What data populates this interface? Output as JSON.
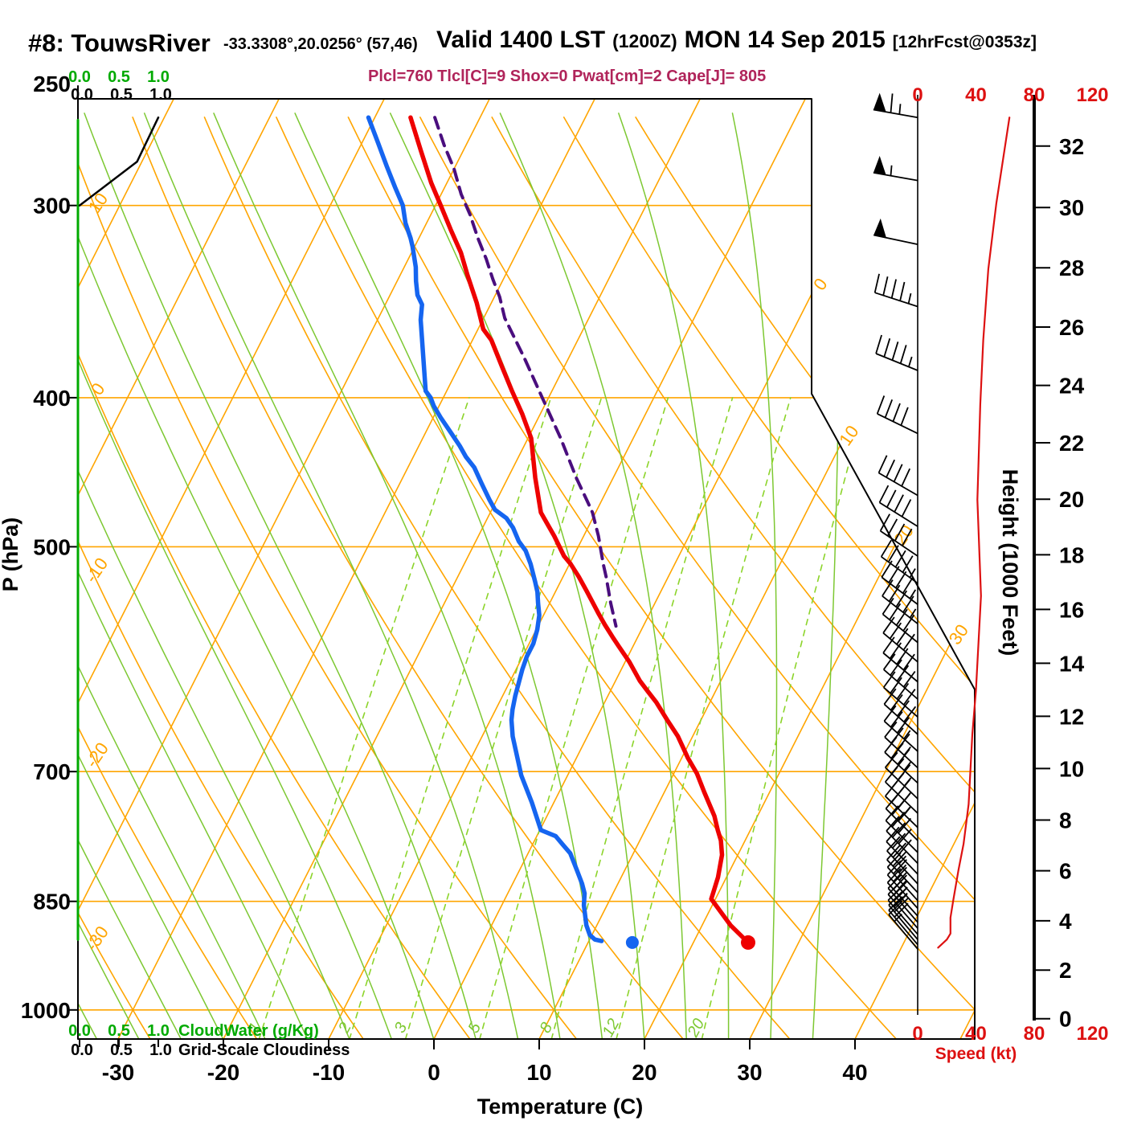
{
  "header": {
    "station": "#8: TouwsRiver",
    "coords": "-33.3308°,20.0256° (57,46)",
    "valid_main": "Valid 1400 LST",
    "valid_zulu": "(1200Z)",
    "valid_date": "MON 14 Sep 2015",
    "valid_fcst": "[12hrFcst@0353z]",
    "subtitle": "Plcl=760 Tlcl[C]=9 Shox=0 Pwat[cm]=2 Cape[J]= 805"
  },
  "colors": {
    "orange": "#FFA500",
    "moist_green": "#7DC832",
    "mix_green": "#8CD42A",
    "bright_green": "#00AA00",
    "temp_red": "#EE0000",
    "dew_blue": "#1565F0",
    "parcel_purple": "#4A0E7E",
    "subtitle_magenta": "#B0245A",
    "speed_red": "#DD1111",
    "black": "#000000"
  },
  "axes": {
    "pressure": {
      "label": "P (hPa)",
      "ticks": [
        250,
        300,
        400,
        500,
        700,
        850,
        1000
      ]
    },
    "temperature": {
      "label": "Temperature (C)",
      "ticks": [
        -30,
        -20,
        -10,
        0,
        10,
        20,
        30,
        40
      ]
    },
    "height": {
      "label": "Height (1000 Feet)",
      "ticks": [
        0,
        2,
        4,
        6,
        8,
        10,
        12,
        14,
        16,
        18,
        20,
        22,
        24,
        26,
        28,
        30,
        32
      ]
    },
    "speed": {
      "label": "Speed (kt)",
      "ticks": [
        0,
        40,
        80,
        120
      ]
    },
    "cloudwater": {
      "label": "CloudWater (g/Kg)",
      "ticks": [
        "0.0",
        "0.5",
        "1.0"
      ]
    },
    "cloudiness": {
      "label": "Grid-Scale Cloudiness",
      "ticks": [
        "0.0",
        "0.5",
        "1.0"
      ]
    }
  },
  "grid_labels": {
    "dry_adiabats": [
      10,
      0,
      -10,
      -20,
      -30
    ],
    "isotherms": [
      0,
      10,
      20,
      30
    ],
    "mixing_ratio": [
      1,
      2,
      3,
      5,
      8,
      12,
      20
    ]
  },
  "chart_data": {
    "type": "skewt-log-p sounding",
    "title": "#8: TouwsRiver Valid 1400 LST (1200Z) MON 14 Sep 2015",
    "pressure_range_hpa": [
      256,
      1045
    ],
    "temperature_axis_c": [
      -30,
      40
    ],
    "series_units": "[pressure_hPa, temperature_C]",
    "temperature": [
      [
        263,
        -46.6
      ],
      [
        276,
        -44.1
      ],
      [
        290,
        -41.5
      ],
      [
        300,
        -39.5
      ],
      [
        311,
        -37.4
      ],
      [
        322,
        -35.3
      ],
      [
        333,
        -33.6
      ],
      [
        347,
        -31.4
      ],
      [
        361,
        -29.5
      ],
      [
        367,
        -28.2
      ],
      [
        382,
        -25.9
      ],
      [
        396,
        -23.8
      ],
      [
        410,
        -21.7
      ],
      [
        425,
        -19.7
      ],
      [
        451,
        -17.4
      ],
      [
        475,
        -15.2
      ],
      [
        482,
        -14.2
      ],
      [
        492,
        -12.8
      ],
      [
        507,
        -10.9
      ],
      [
        513,
        -9.9
      ],
      [
        523,
        -8.5
      ],
      [
        534,
        -7.1
      ],
      [
        553,
        -4.8
      ],
      [
        562,
        -3.7
      ],
      [
        573,
        -2.3
      ],
      [
        580,
        -1.4
      ],
      [
        594,
        0.4
      ],
      [
        611,
        2.3
      ],
      [
        621,
        3.6
      ],
      [
        631,
        4.9
      ],
      [
        648,
        6.8
      ],
      [
        664,
        8.6
      ],
      [
        686,
        10.6
      ],
      [
        702,
        12.2
      ],
      [
        722,
        13.8
      ],
      [
        748,
        15.9
      ],
      [
        764,
        16.9
      ],
      [
        776,
        17.7
      ],
      [
        793,
        18.5
      ],
      [
        820,
        19.2
      ],
      [
        840,
        19.5
      ],
      [
        847,
        19.6
      ],
      [
        860,
        20.8
      ],
      [
        881,
        22.7
      ],
      [
        904,
        25.2
      ]
    ],
    "dewpoint": [
      [
        263,
        -50.6
      ],
      [
        273,
        -48.5
      ],
      [
        283,
        -46.5
      ],
      [
        292,
        -44.7
      ],
      [
        300,
        -43.1
      ],
      [
        308,
        -42.0
      ],
      [
        315,
        -40.8
      ],
      [
        319,
        -40.2
      ],
      [
        329,
        -38.9
      ],
      [
        336,
        -38.2
      ],
      [
        343,
        -37.4
      ],
      [
        348,
        -36.5
      ],
      [
        356,
        -35.9
      ],
      [
        396,
        -32.0
      ],
      [
        400,
        -31.2
      ],
      [
        405,
        -30.5
      ],
      [
        412,
        -29.3
      ],
      [
        422,
        -27.5
      ],
      [
        430,
        -26.1
      ],
      [
        437,
        -25.0
      ],
      [
        444,
        -23.7
      ],
      [
        455,
        -22.2
      ],
      [
        466,
        -20.7
      ],
      [
        473,
        -19.7
      ],
      [
        479,
        -18.2
      ],
      [
        486,
        -17.1
      ],
      [
        496,
        -15.9
      ],
      [
        503,
        -14.8
      ],
      [
        513,
        -13.7
      ],
      [
        527,
        -12.4
      ],
      [
        535,
        -11.7
      ],
      [
        544,
        -11.1
      ],
      [
        554,
        -10.4
      ],
      [
        566,
        -9.9
      ],
      [
        578,
        -9.6
      ],
      [
        589,
        -9.6
      ],
      [
        601,
        -9.4
      ],
      [
        613,
        -9.1
      ],
      [
        625,
        -8.8
      ],
      [
        638,
        -8.4
      ],
      [
        648,
        -8.0
      ],
      [
        664,
        -7.1
      ],
      [
        704,
        -4.4
      ],
      [
        733,
        -2.1
      ],
      [
        764,
        0.1
      ],
      [
        771,
        1.8
      ],
      [
        781,
        2.9
      ],
      [
        791,
        4.0
      ],
      [
        812,
        5.5
      ],
      [
        828,
        6.6
      ],
      [
        840,
        7.3
      ],
      [
        855,
        7.8
      ],
      [
        881,
        9.0
      ],
      [
        894,
        9.8
      ],
      [
        900,
        10.5
      ],
      [
        902,
        11.2
      ]
    ],
    "parcel": [
      [
        263,
        -44.3
      ],
      [
        274,
        -42.1
      ],
      [
        284,
        -40.0
      ],
      [
        295,
        -38.1
      ],
      [
        304,
        -36.3
      ],
      [
        315,
        -34.4
      ],
      [
        325,
        -32.6
      ],
      [
        335,
        -31.0
      ],
      [
        344,
        -29.5
      ],
      [
        355,
        -28.0
      ],
      [
        377,
        -24.2
      ],
      [
        400,
        -20.6
      ],
      [
        425,
        -16.9
      ],
      [
        451,
        -13.5
      ],
      [
        468,
        -11.2
      ],
      [
        475,
        -10.3
      ],
      [
        492,
        -8.6
      ],
      [
        513,
        -6.8
      ],
      [
        523,
        -5.9
      ],
      [
        544,
        -4.2
      ],
      [
        563,
        -2.6
      ]
    ],
    "surface_temp_dot": [
      904,
      25.2
    ],
    "surface_dew_dot": [
      904,
      14.2
    ],
    "cloudiness_profile": [
      [
        300,
        0.0
      ],
      [
        281,
        0.73
      ],
      [
        263,
        1.0
      ]
    ],
    "cloudwater_profile": [
      [
        900,
        0.0
      ],
      [
        264,
        0.0
      ]
    ],
    "speed_profile_kt": [
      [
        263,
        63
      ],
      [
        299,
        54
      ],
      [
        330,
        48.5
      ],
      [
        367,
        45
      ],
      [
        404,
        43
      ],
      [
        434,
        42
      ],
      [
        466,
        41
      ],
      [
        538,
        43.5
      ],
      [
        620,
        40
      ],
      [
        662,
        37.5
      ],
      [
        735,
        35
      ],
      [
        780,
        31.5
      ],
      [
        811,
        28
      ],
      [
        848,
        24.5
      ],
      [
        871,
        22.5
      ],
      [
        892,
        22.5
      ],
      [
        900,
        20
      ],
      [
        911,
        14
      ]
    ],
    "wind_barbs": [
      {
        "p": 263,
        "kt": 65,
        "ang": 10
      },
      {
        "p": 289,
        "kt": 55,
        "ang": 10
      },
      {
        "p": 318,
        "kt": 50,
        "ang": 12
      },
      {
        "p": 349,
        "kt": 45,
        "ang": 18
      },
      {
        "p": 384,
        "kt": 43,
        "ang": 22
      },
      {
        "p": 422,
        "kt": 42,
        "ang": 26
      },
      {
        "p": 463,
        "kt": 41,
        "ang": 30
      },
      {
        "p": 485,
        "kt": 41,
        "ang": 32
      },
      {
        "p": 507,
        "kt": 41,
        "ang": 34
      },
      {
        "p": 528,
        "kt": 43,
        "ang": 36
      },
      {
        "p": 545,
        "kt": 43,
        "ang": 37
      },
      {
        "p": 561,
        "kt": 43,
        "ang": 38
      },
      {
        "p": 577,
        "kt": 42,
        "ang": 39
      },
      {
        "p": 594,
        "kt": 42,
        "ang": 40
      },
      {
        "p": 612,
        "kt": 41,
        "ang": 40
      },
      {
        "p": 628,
        "kt": 40,
        "ang": 41
      },
      {
        "p": 645,
        "kt": 39,
        "ang": 41
      },
      {
        "p": 662,
        "kt": 38,
        "ang": 42
      },
      {
        "p": 679,
        "kt": 37,
        "ang": 42
      },
      {
        "p": 696,
        "kt": 36,
        "ang": 43
      },
      {
        "p": 712,
        "kt": 36,
        "ang": 43
      },
      {
        "p": 729,
        "kt": 35,
        "ang": 44
      },
      {
        "p": 745,
        "kt": 35,
        "ang": 44
      },
      {
        "p": 761,
        "kt": 34,
        "ang": 44
      },
      {
        "p": 776,
        "kt": 32,
        "ang": 45
      },
      {
        "p": 790,
        "kt": 30,
        "ang": 45
      },
      {
        "p": 803,
        "kt": 29,
        "ang": 46
      },
      {
        "p": 816,
        "kt": 28,
        "ang": 46
      },
      {
        "p": 828,
        "kt": 27,
        "ang": 47
      },
      {
        "p": 839,
        "kt": 26,
        "ang": 47
      },
      {
        "p": 849,
        "kt": 25,
        "ang": 48
      },
      {
        "p": 859,
        "kt": 24,
        "ang": 48
      },
      {
        "p": 869,
        "kt": 23,
        "ang": 48
      },
      {
        "p": 877,
        "kt": 23,
        "ang": 49
      },
      {
        "p": 885,
        "kt": 22,
        "ang": 49
      },
      {
        "p": 893,
        "kt": 22,
        "ang": 49
      },
      {
        "p": 900,
        "kt": 21,
        "ang": 50
      },
      {
        "p": 907,
        "kt": 18,
        "ang": 50
      },
      {
        "p": 913,
        "kt": 15,
        "ang": 50
      }
    ]
  }
}
